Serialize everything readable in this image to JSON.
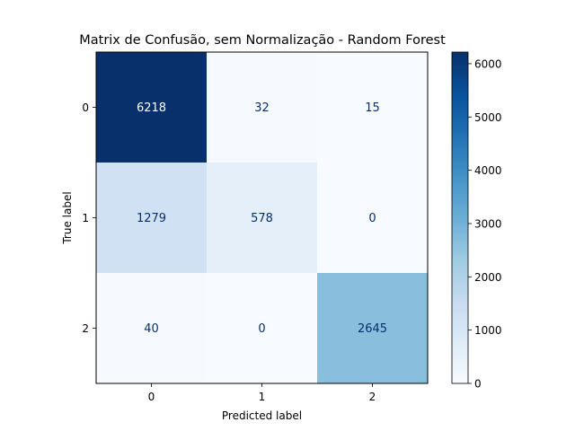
{
  "chart_data": {
    "type": "heatmap",
    "title": "Matrix de Confusão, sem Normalização - Random Forest",
    "xlabel": "Predicted label",
    "ylabel": "True label",
    "x_categories": [
      "0",
      "1",
      "2"
    ],
    "y_categories": [
      "0",
      "1",
      "2"
    ],
    "values": [
      [
        6218,
        32,
        15
      ],
      [
        1279,
        578,
        0
      ],
      [
        40,
        0,
        2645
      ]
    ],
    "colormap": "Blues",
    "color_range": [
      0,
      6218
    ],
    "colorbar_ticks": [
      0,
      1000,
      2000,
      3000,
      4000,
      5000,
      6000
    ],
    "grid": false
  }
}
